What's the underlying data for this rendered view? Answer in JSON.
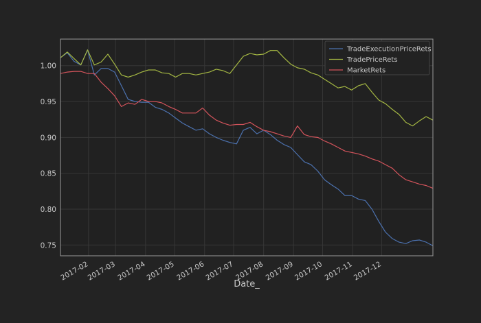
{
  "chart_data": {
    "type": "line",
    "xlabel": "Date_",
    "ylabel": "",
    "title": "",
    "grid": true,
    "legend_position": "top-right",
    "xlim": [
      "2017-01-03",
      "2018-01-23"
    ],
    "ylim": [
      0.735,
      1.037
    ],
    "x_ticks": [
      {
        "date": "2017-02-01",
        "label": "2017-02"
      },
      {
        "date": "2017-03-01",
        "label": "2017-03"
      },
      {
        "date": "2017-04-01",
        "label": "2017-04"
      },
      {
        "date": "2017-05-01",
        "label": "2017-05"
      },
      {
        "date": "2017-06-01",
        "label": "2017-06"
      },
      {
        "date": "2017-07-01",
        "label": "2017-07"
      },
      {
        "date": "2017-08-01",
        "label": "2017-08"
      },
      {
        "date": "2017-09-01",
        "label": "2017-09"
      },
      {
        "date": "2017-10-01",
        "label": "2017-10"
      },
      {
        "date": "2017-11-01",
        "label": "2017-11"
      },
      {
        "date": "2017-12-01",
        "label": "2017-12"
      }
    ],
    "y_ticks": [
      {
        "value": 0.75,
        "label": "0.75"
      },
      {
        "value": 0.8,
        "label": "0.80"
      },
      {
        "value": 0.85,
        "label": "0.85"
      },
      {
        "value": 0.9,
        "label": "0.90"
      },
      {
        "value": 0.95,
        "label": "0.95"
      },
      {
        "value": 1.0,
        "label": "1.00"
      }
    ],
    "x": [
      "2017-01-03",
      "2017-01-10",
      "2017-01-17",
      "2017-01-24",
      "2017-01-31",
      "2017-02-07",
      "2017-02-14",
      "2017-02-21",
      "2017-02-28",
      "2017-03-07",
      "2017-03-14",
      "2017-03-21",
      "2017-03-28",
      "2017-04-04",
      "2017-04-11",
      "2017-04-18",
      "2017-04-25",
      "2017-05-02",
      "2017-05-09",
      "2017-05-16",
      "2017-05-23",
      "2017-05-30",
      "2017-06-06",
      "2017-06-13",
      "2017-06-20",
      "2017-06-27",
      "2017-07-04",
      "2017-07-11",
      "2017-07-18",
      "2017-07-25",
      "2017-08-01",
      "2017-08-08",
      "2017-08-15",
      "2017-08-22",
      "2017-08-29",
      "2017-09-05",
      "2017-09-12",
      "2017-09-19",
      "2017-09-26",
      "2017-10-03",
      "2017-10-10",
      "2017-10-17",
      "2017-10-24",
      "2017-10-31",
      "2017-11-07",
      "2017-11-14",
      "2017-11-21",
      "2017-11-28",
      "2017-12-05",
      "2017-12-12",
      "2017-12-19",
      "2017-12-26",
      "2018-01-02",
      "2018-01-09",
      "2018-01-16",
      "2018-01-23"
    ],
    "series": [
      {
        "name": "TradeExecutionPriceRets",
        "color": "#4c72b0",
        "values": [
          1.011,
          1.018,
          1.006,
          1.001,
          1.022,
          0.987,
          0.996,
          0.996,
          0.991,
          0.972,
          0.953,
          0.95,
          0.949,
          0.949,
          0.942,
          0.939,
          0.934,
          0.927,
          0.92,
          0.915,
          0.91,
          0.912,
          0.905,
          0.9,
          0.896,
          0.893,
          0.891,
          0.91,
          0.914,
          0.905,
          0.91,
          0.904,
          0.896,
          0.89,
          0.886,
          0.876,
          0.866,
          0.862,
          0.853,
          0.841,
          0.834,
          0.828,
          0.819,
          0.819,
          0.814,
          0.812,
          0.8,
          0.783,
          0.768,
          0.759,
          0.754,
          0.752,
          0.756,
          0.757,
          0.754,
          0.749
        ]
      },
      {
        "name": "TradePriceRets",
        "color": "#a5b843",
        "values": [
          1.011,
          1.019,
          1.01,
          1.001,
          1.022,
          1.001,
          1.005,
          1.016,
          1.002,
          0.987,
          0.984,
          0.987,
          0.991,
          0.994,
          0.994,
          0.99,
          0.989,
          0.984,
          0.989,
          0.989,
          0.987,
          0.989,
          0.991,
          0.995,
          0.993,
          0.989,
          1.001,
          1.013,
          1.017,
          1.015,
          1.016,
          1.021,
          1.021,
          1.011,
          1.002,
          0.997,
          0.995,
          0.99,
          0.987,
          0.981,
          0.975,
          0.969,
          0.971,
          0.966,
          0.972,
          0.975,
          0.963,
          0.952,
          0.947,
          0.939,
          0.932,
          0.921,
          0.916,
          0.923,
          0.929,
          0.924
        ]
      },
      {
        "name": "MarketRets",
        "color": "#d5545c",
        "values": [
          0.989,
          0.991,
          0.992,
          0.992,
          0.989,
          0.989,
          0.977,
          0.968,
          0.958,
          0.943,
          0.948,
          0.946,
          0.953,
          0.95,
          0.95,
          0.948,
          0.943,
          0.939,
          0.934,
          0.934,
          0.934,
          0.941,
          0.931,
          0.924,
          0.92,
          0.917,
          0.918,
          0.918,
          0.921,
          0.915,
          0.91,
          0.908,
          0.905,
          0.902,
          0.9,
          0.916,
          0.904,
          0.901,
          0.9,
          0.895,
          0.891,
          0.886,
          0.881,
          0.879,
          0.877,
          0.874,
          0.87,
          0.867,
          0.862,
          0.857,
          0.848,
          0.841,
          0.838,
          0.835,
          0.833,
          0.829
        ]
      }
    ]
  }
}
